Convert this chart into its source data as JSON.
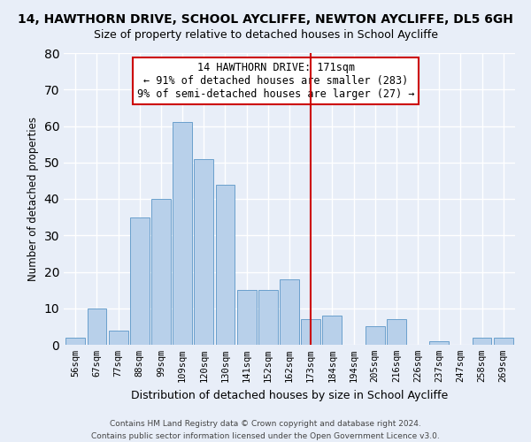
{
  "title": "14, HAWTHORN DRIVE, SCHOOL AYCLIFFE, NEWTON AYCLIFFE, DL5 6GH",
  "subtitle": "Size of property relative to detached houses in School Aycliffe",
  "xlabel": "Distribution of detached houses by size in School Aycliffe",
  "ylabel": "Number of detached properties",
  "bin_labels": [
    "56sqm",
    "67sqm",
    "77sqm",
    "88sqm",
    "99sqm",
    "109sqm",
    "120sqm",
    "130sqm",
    "141sqm",
    "152sqm",
    "162sqm",
    "173sqm",
    "184sqm",
    "194sqm",
    "205sqm",
    "216sqm",
    "226sqm",
    "237sqm",
    "247sqm",
    "258sqm",
    "269sqm"
  ],
  "bar_heights": [
    2,
    10,
    4,
    35,
    40,
    61,
    51,
    44,
    15,
    15,
    18,
    7,
    8,
    0,
    5,
    7,
    0,
    1,
    0,
    2,
    2
  ],
  "bar_color": "#b8d0ea",
  "bar_edge_color": "#6aa0cc",
  "vline_color": "#cc0000",
  "annotation_title": "14 HAWTHORN DRIVE: 171sqm",
  "annotation_line1": "← 91% of detached houses are smaller (283)",
  "annotation_line2": "9% of semi-detached houses are larger (27) →",
  "ylim": [
    0,
    80
  ],
  "yticks": [
    0,
    10,
    20,
    30,
    40,
    50,
    60,
    70,
    80
  ],
  "footer1": "Contains HM Land Registry data © Crown copyright and database right 2024.",
  "footer2": "Contains public sector information licensed under the Open Government Licence v3.0.",
  "bg_color": "#e8eef8",
  "plot_bg_color": "#e8eef8",
  "grid_color": "#ffffff",
  "title_fontsize": 10,
  "subtitle_fontsize": 9
}
